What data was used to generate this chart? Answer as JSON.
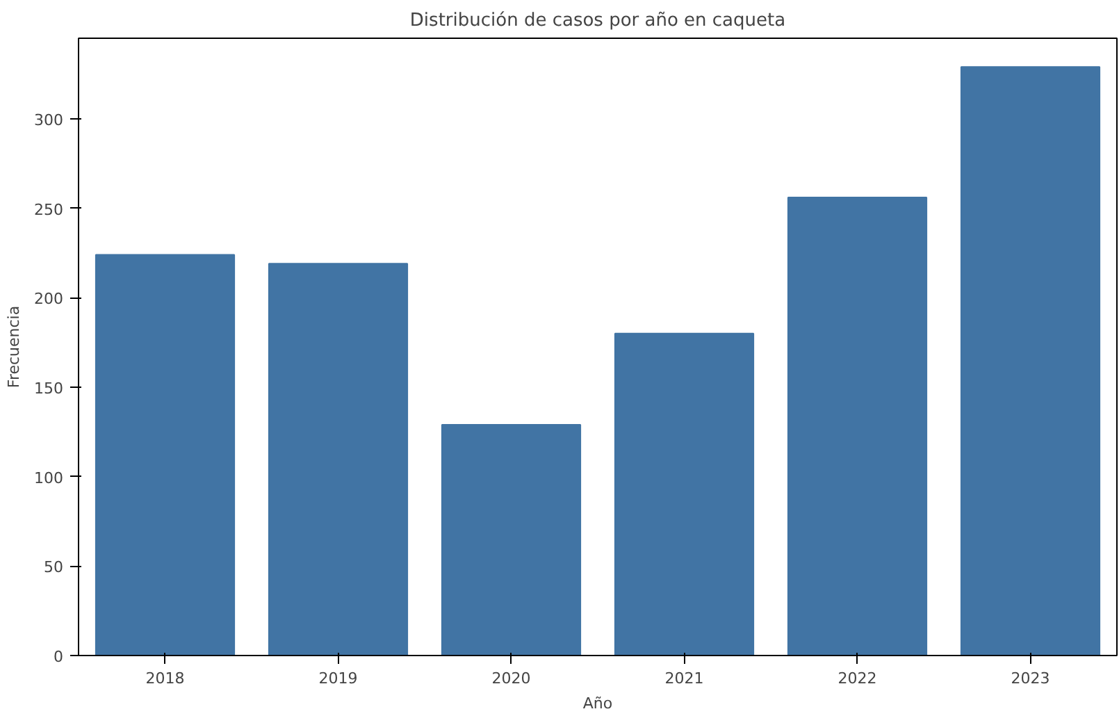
{
  "chart_data": {
    "type": "bar",
    "title": "Distribución de casos por año en caqueta",
    "xlabel": "Año",
    "ylabel": "Frecuencia",
    "categories": [
      "2018",
      "2019",
      "2020",
      "2021",
      "2022",
      "2023"
    ],
    "values": [
      224,
      219,
      129,
      180,
      256,
      329
    ],
    "color": "#4174a4",
    "ylim": [
      0,
      345
    ],
    "yticks": [
      0,
      50,
      100,
      150,
      200,
      250,
      300
    ],
    "grid": false
  }
}
